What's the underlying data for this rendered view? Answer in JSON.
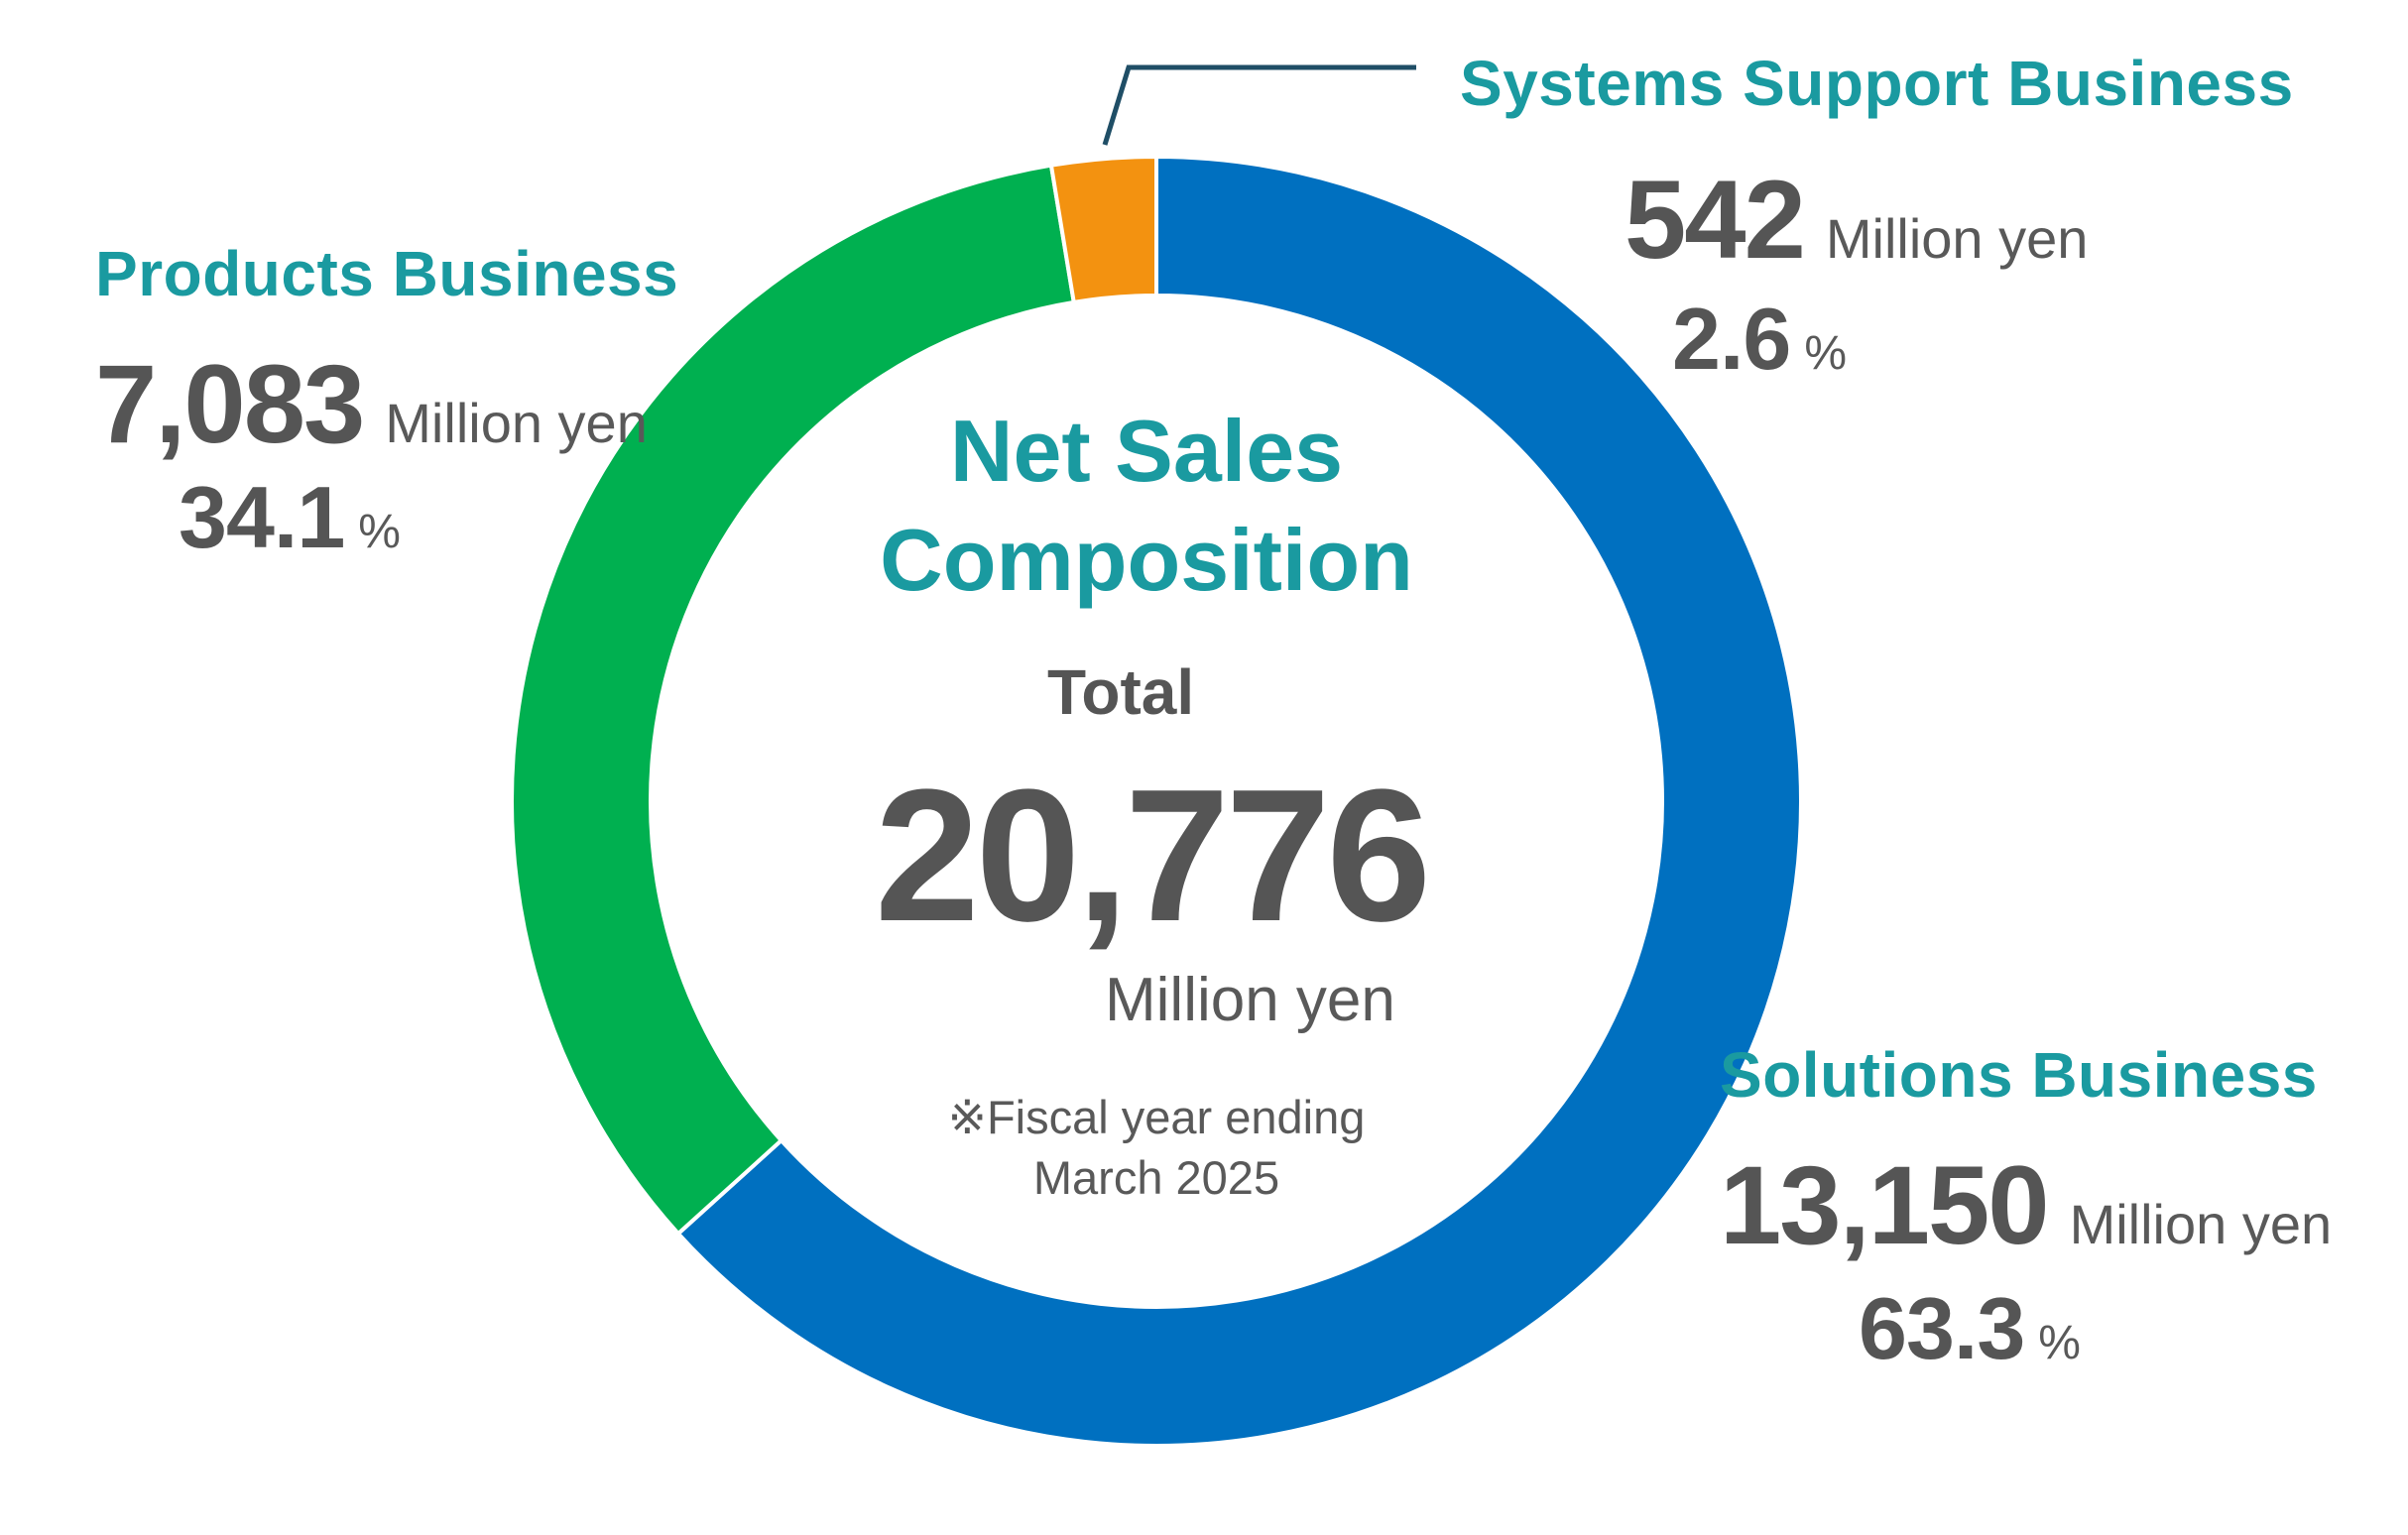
{
  "colors": {
    "accent_text": "#1a9aa0",
    "value_text": "#555555",
    "solutions": "#0070c0",
    "products": "#00b050",
    "systems_support": "#f39210",
    "leader_line": "#1f4e66"
  },
  "center": {
    "title_line1": "Net Sales",
    "title_line2": "Composition",
    "total_label": "Total",
    "total_value": "20,776",
    "total_unit": "Million yen",
    "note_line1": "※Fiscal year ending",
    "note_line2": "March 2025"
  },
  "labels": {
    "systems_support": {
      "name": "Systems Support Business",
      "value": "542",
      "unit": "Million yen",
      "percent": "2.6",
      "percent_unit": "%"
    },
    "products": {
      "name": "Products Business",
      "value": "7,083",
      "unit": "Million yen",
      "percent": "34.1",
      "percent_unit": "%"
    },
    "solutions": {
      "name": "Solutions Business",
      "value": "13,150",
      "unit": "Million yen",
      "percent": "63.3",
      "percent_unit": "%"
    }
  },
  "chart_data": {
    "type": "pie",
    "variant": "donut",
    "title": "Net Sales Composition",
    "total": 20776,
    "unit": "Million yen",
    "start": "12 o'clock",
    "direction": "clockwise",
    "categories": [
      "Solutions Business",
      "Products Business",
      "Systems Support Business"
    ],
    "values": [
      13150,
      7083,
      542
    ],
    "percentages": [
      63.3,
      34.1,
      2.6
    ],
    "slice_colors": [
      "#0070c0",
      "#00b050",
      "#f39210"
    ],
    "legend": "none"
  }
}
